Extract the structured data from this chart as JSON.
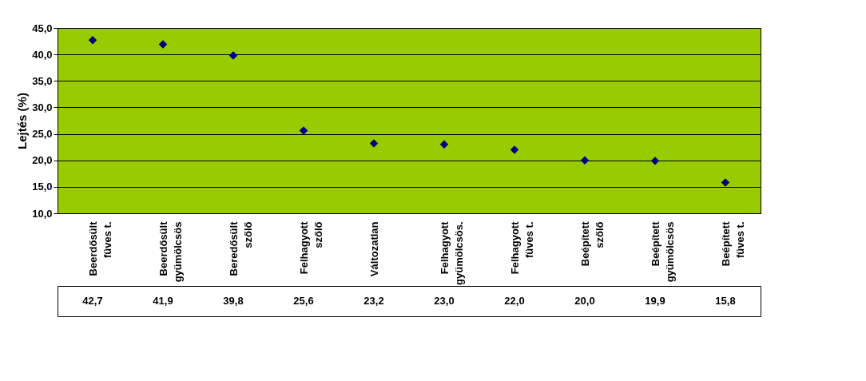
{
  "chart_data": {
    "type": "scatter",
    "ylabel": "Lejtés (%)",
    "categories": [
      "Beerdősült\nfüves t.",
      "Beerdősült\ngyümölcsös",
      "Beredősült\nszőlő",
      "Felhagyott\nszőlő",
      "Változatlan",
      "Felhagyott\ngyümölcsös.",
      "Felhagyott\nfüves t.",
      "Beépített\nszőlő",
      "Beépített\ngyümölcsös",
      "Beépített\nfüves t."
    ],
    "series": [
      {
        "color": "#000080",
        "values": [
          42.7,
          41.9,
          39.8,
          25.6,
          23.2,
          23.0,
          22.0,
          20.0,
          19.9,
          15.8
        ],
        "value_labels": [
          "42,7",
          "41,9",
          "39,8",
          "25,6",
          "23,2",
          "23,0",
          "22,0",
          "20,0",
          "19,9",
          "15,8"
        ]
      }
    ],
    "ylim": [
      10,
      45
    ],
    "yticks": [
      {
        "value": 10,
        "label": "10,0"
      },
      {
        "value": 15,
        "label": "15,0"
      },
      {
        "value": 20,
        "label": "20,0"
      },
      {
        "value": 25,
        "label": "25,0"
      },
      {
        "value": 30,
        "label": "30,0"
      },
      {
        "value": 35,
        "label": "35,0"
      },
      {
        "value": 40,
        "label": "40,0"
      },
      {
        "value": 45,
        "label": "45,0"
      }
    ],
    "grid": "y",
    "marker": "diamond"
  }
}
